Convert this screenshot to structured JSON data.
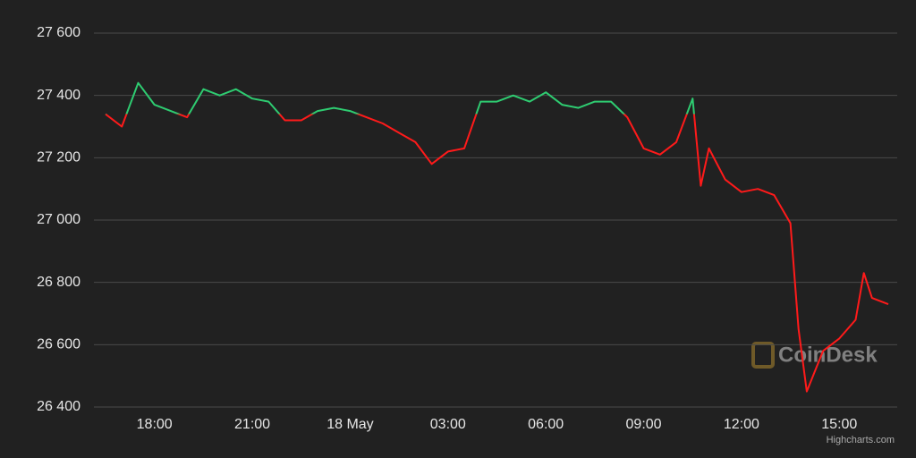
{
  "chart_data": {
    "type": "line",
    "x": [
      -7.5,
      -7,
      -6.5,
      -6,
      -5.5,
      -5,
      -4.5,
      -4,
      -3.5,
      -3,
      -2.5,
      -2,
      -1.5,
      -1,
      -0.5,
      0,
      0.5,
      1,
      1.5,
      2,
      2.5,
      3,
      3.5,
      4,
      4.5,
      5,
      5.5,
      6,
      6.5,
      7,
      7.5,
      8,
      8.5,
      9,
      9.5,
      10,
      10.5,
      10.75,
      11,
      11.5,
      12,
      12.5,
      13,
      13.5,
      13.75,
      14,
      14.5,
      15,
      15.5,
      15.75,
      16,
      16.5
    ],
    "series": [
      {
        "values": [
          27340,
          27300,
          27440,
          27370,
          27350,
          27330,
          27420,
          27400,
          27420,
          27390,
          27380,
          27320,
          27320,
          27350,
          27360,
          27350,
          27330,
          27310,
          27280,
          27250,
          27180,
          27220,
          27230,
          27380,
          27380,
          27400,
          27380,
          27410,
          27370,
          27360,
          27380,
          27380,
          27330,
          27230,
          27210,
          27250,
          27390,
          27110,
          27230,
          27130,
          27090,
          27100,
          27080,
          26990,
          26650,
          26450,
          26580,
          26620,
          26680,
          26830,
          26750,
          26730
        ]
      }
    ],
    "color_up": "#2ecc71",
    "color_down": "#ff1a1a",
    "xlim": [
      -7.5,
      16.5
    ],
    "xticks": [
      {
        "value": -6,
        "label": "18:00"
      },
      {
        "value": -3,
        "label": "21:00"
      },
      {
        "value": 0,
        "label": "18 May"
      },
      {
        "value": 3,
        "label": "03:00"
      },
      {
        "value": 6,
        "label": "06:00"
      },
      {
        "value": 9,
        "label": "09:00"
      },
      {
        "value": 12,
        "label": "12:00"
      },
      {
        "value": 15,
        "label": "15:00"
      }
    ],
    "ylim": [
      26400,
      27600
    ],
    "yticks": [
      {
        "value": 26400,
        "label": "26 400"
      },
      {
        "value": 26600,
        "label": "26 600"
      },
      {
        "value": 26800,
        "label": "26 800"
      },
      {
        "value": 27000,
        "label": "27 000"
      },
      {
        "value": 27200,
        "label": "27 200"
      },
      {
        "value": 27400,
        "label": "27 400"
      },
      {
        "value": 27600,
        "label": "27 600"
      }
    ],
    "grid": true,
    "watermark": "CoinDesk",
    "credits": "Highcharts.com"
  }
}
